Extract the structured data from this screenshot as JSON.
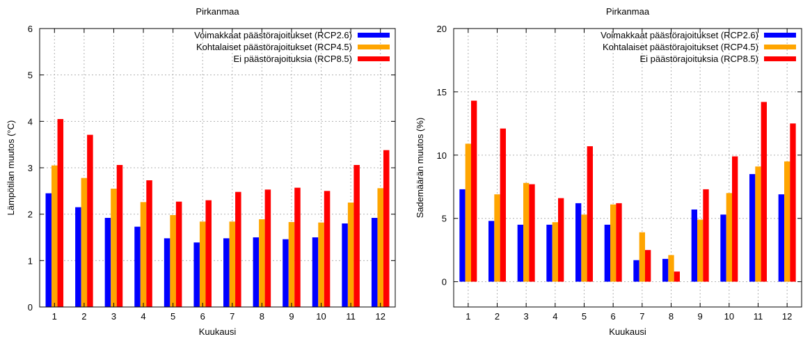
{
  "colors": {
    "rcp26": "#0000ff",
    "rcp45": "#ffa500",
    "rcp85": "#ff0000"
  },
  "chart_data": [
    {
      "type": "bar",
      "title": "Pirkanmaa",
      "xlabel": "Kuukausi",
      "ylabel": "Lämpötilan muutos (°C)",
      "ylim": [
        0,
        6
      ],
      "yticks": [
        0,
        1,
        2,
        3,
        4,
        5,
        6
      ],
      "categories": [
        "1",
        "2",
        "3",
        "4",
        "5",
        "6",
        "7",
        "8",
        "9",
        "10",
        "11",
        "12"
      ],
      "legend_position": "top-right",
      "grid": true,
      "series": [
        {
          "name": "Voimakkaat päästörajoitukset (RCP2.6)",
          "values": [
            2.45,
            2.15,
            1.92,
            1.73,
            1.48,
            1.39,
            1.48,
            1.5,
            1.46,
            1.5,
            1.8,
            1.92
          ]
        },
        {
          "name": "Kohtalaiset päästörajoitukset (RCP4.5)",
          "values": [
            3.05,
            2.78,
            2.55,
            2.26,
            1.98,
            1.84,
            1.84,
            1.89,
            1.83,
            1.82,
            2.25,
            2.56
          ]
        },
        {
          "name": "Ei päästörajoituksia (RCP8.5)",
          "values": [
            4.05,
            3.71,
            3.06,
            2.73,
            2.27,
            2.3,
            2.48,
            2.53,
            2.57,
            2.5,
            3.06,
            3.38
          ]
        }
      ]
    },
    {
      "type": "bar",
      "title": "Pirkanmaa",
      "xlabel": "Kuukausi",
      "ylabel": "Sademäärän muutos (%)",
      "ylim": [
        -2,
        20
      ],
      "yticks": [
        0,
        5,
        10,
        15,
        20
      ],
      "categories": [
        "1",
        "2",
        "3",
        "4",
        "5",
        "6",
        "7",
        "8",
        "9",
        "10",
        "11",
        "12"
      ],
      "legend_position": "top-right",
      "grid": true,
      "series": [
        {
          "name": "Voimakkaat päästörajoitukset (RCP2.6)",
          "values": [
            7.3,
            4.8,
            4.5,
            4.5,
            6.2,
            4.5,
            1.7,
            1.8,
            5.7,
            5.3,
            8.5,
            6.9
          ]
        },
        {
          "name": "Kohtalaiset päästörajoitukset (RCP4.5)",
          "values": [
            10.9,
            6.9,
            7.8,
            4.7,
            5.3,
            6.1,
            3.9,
            2.1,
            4.9,
            7.0,
            9.1,
            9.5
          ]
        },
        {
          "name": "Ei päästörajoituksia (RCP8.5)",
          "values": [
            14.3,
            12.1,
            7.7,
            6.6,
            10.7,
            6.2,
            2.5,
            0.8,
            7.3,
            9.9,
            14.2,
            12.5
          ]
        }
      ]
    }
  ]
}
